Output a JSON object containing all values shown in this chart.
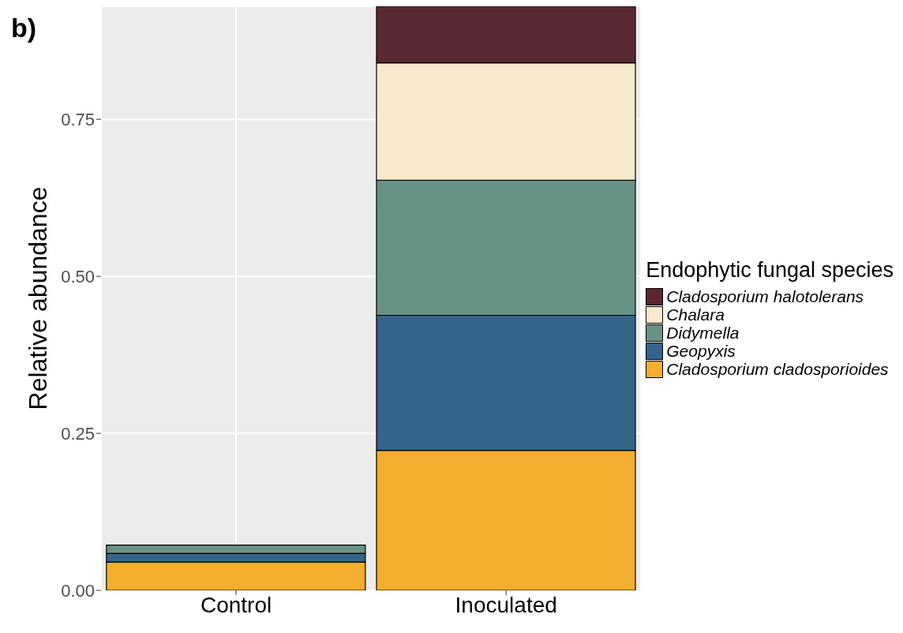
{
  "chart_data": {
    "type": "bar",
    "stacked": true,
    "annotations": [
      "b)"
    ],
    "ylabel": "Relative abundance",
    "legend_title": "Endophytic fungal species",
    "categories": [
      "Control",
      "Inoculated"
    ],
    "series": [
      {
        "name": "Cladosporium cladosporioides",
        "color": "#f3ae2f",
        "values": [
          0.045,
          0.223
        ]
      },
      {
        "name": "Geopyxis",
        "color": "#33658a",
        "values": [
          0.014,
          0.215
        ]
      },
      {
        "name": "Didymella",
        "color": "#679387",
        "values": [
          0.013,
          0.215
        ]
      },
      {
        "name": "Chalara",
        "color": "#f7e9cb",
        "values": [
          null,
          0.187
        ]
      },
      {
        "name": "Cladosporium halotolerans",
        "color": "#5a2832",
        "values": [
          null,
          0.092
        ]
      }
    ],
    "ylim": [
      0,
      0.93
    ],
    "yticks": [
      {
        "value": 0,
        "label": "0.00"
      },
      {
        "value": 0.25,
        "label": "0.25"
      },
      {
        "value": 0.5,
        "label": "0.50"
      },
      {
        "value": 0.75,
        "label": "0.75"
      }
    ],
    "grid": true,
    "legend": "right"
  }
}
